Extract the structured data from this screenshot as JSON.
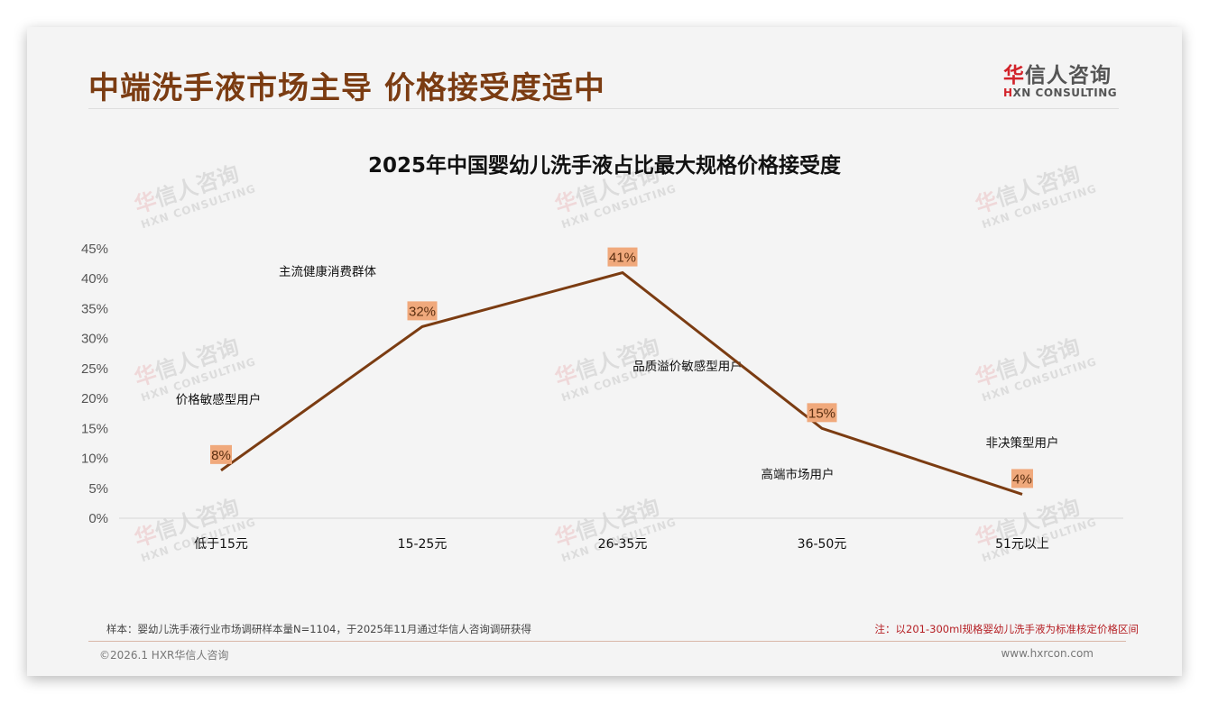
{
  "header": {
    "title": "中端洗手液市场主导 价格接受度适中",
    "logo_cn_first": "华",
    "logo_cn_rest": "信人咨询",
    "logo_en_first": "H",
    "logo_en_rest": "XN CONSULTING"
  },
  "watermark": {
    "cn_first": "华",
    "cn_rest": "信人咨询",
    "en": "HXN CONSULTING"
  },
  "chart_data": {
    "type": "line",
    "title": "2025年中国婴幼儿洗手液占比最大规格价格接受度",
    "categories": [
      "低于15元",
      "15-25元",
      "26-35元",
      "36-50元",
      "51元以上"
    ],
    "values": [
      8,
      32,
      41,
      15,
      4
    ],
    "value_labels": [
      "8%",
      "32%",
      "41%",
      "15%",
      "4%"
    ],
    "xlabel": "",
    "ylabel": "",
    "ylim": [
      0,
      45
    ],
    "y_ticks": [
      "0%",
      "5%",
      "10%",
      "15%",
      "20%",
      "25%",
      "30%",
      "35%",
      "40%",
      "45%"
    ],
    "grid": false,
    "legend": "none",
    "line_color": "#7b3c12",
    "label_bg_color": "#f0a97c",
    "annotations": [
      {
        "text": "价格敏感型用户",
        "category": "低于15元"
      },
      {
        "text": "主流健康消费群体",
        "category": "15-25元"
      },
      {
        "text": "品质溢价敏感型用户",
        "category": "26-35元"
      },
      {
        "text": "高端市场用户",
        "category": "36-50元"
      },
      {
        "text": "非决策型用户",
        "category": "51元以上"
      }
    ]
  },
  "footer": {
    "sample_note": "样本：婴幼儿洗手液行业市场调研样本量N=1104，于2025年11月通过华信人咨询调研获得",
    "price_note": "注：以201-300ml规格婴幼儿洗手液为标准核定价格区间",
    "copyright": "©2026.1 HXR华信人咨询",
    "website": "www.hxrcon.com"
  },
  "colors": {
    "title_brown": "#7b3c12",
    "brand_red": "#d2232a",
    "note_red": "#b51f24",
    "slide_bg": "#f4f4f4"
  }
}
